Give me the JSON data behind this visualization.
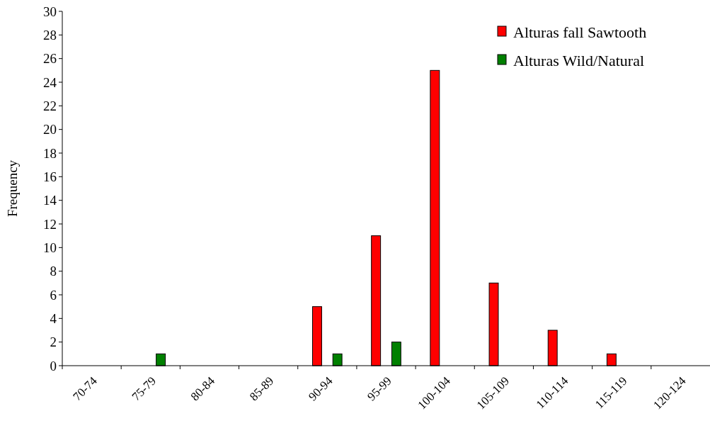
{
  "chart_data": {
    "type": "bar",
    "ylabel": "Frequency",
    "categories": [
      "70-74",
      "75-79",
      "80-84",
      "85-89",
      "90-94",
      "95-99",
      "100-104",
      "105-109",
      "110-114",
      "115-119",
      "120-124"
    ],
    "series": [
      {
        "name": "Alturas fall Sawtooth",
        "color": "#ff0000",
        "values": [
          0,
          0,
          0,
          0,
          5,
          11,
          25,
          7,
          3,
          1,
          0
        ]
      },
      {
        "name": "Alturas Wild/Natural",
        "color": "#008000",
        "values": [
          0,
          1,
          0,
          0,
          1,
          2,
          0,
          0,
          0,
          0,
          0
        ]
      }
    ],
    "ylim": [
      0,
      30
    ],
    "yticks": [
      0,
      2,
      4,
      6,
      8,
      10,
      12,
      14,
      16,
      18,
      20,
      22,
      24,
      26,
      28,
      30
    ],
    "grid": false,
    "legend": "top right"
  }
}
